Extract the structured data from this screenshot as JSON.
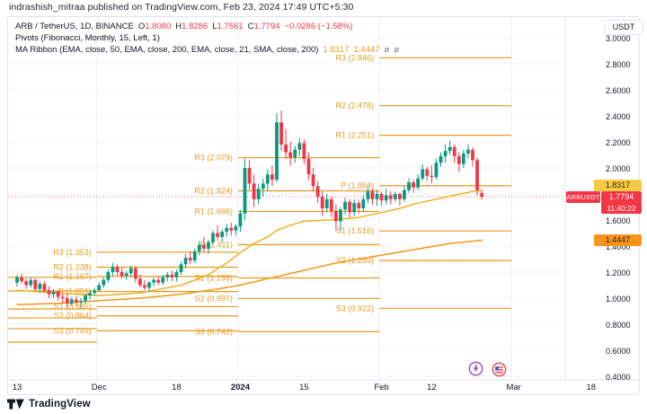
{
  "header": {
    "note": "indrashish_mitraa published on TradingView.com, Feb 23, 2024 17:49 UTC+5:30"
  },
  "legend": {
    "symbol": "ARB / TetherUS, 1D, BINANCE",
    "ohlc": [
      {
        "k": "O",
        "v": "1.8080"
      },
      {
        "k": "H",
        "v": "1.8286"
      },
      {
        "k": "L",
        "v": "1.7561"
      },
      {
        "k": "C",
        "v": "1.7794"
      }
    ],
    "change": "−0.0286 (−1.58%)",
    "pivots_line": "Pivots (Fibonacci, Monthly, 15, Left, 1)",
    "ma_line": "MA Ribbon (EMA, close, 50, EMA, close, 200, EMA, close, 21, SMA, close, 200)",
    "ma_v1": "1.8317",
    "ma_v2": "1.4447",
    "ma_v3": "ø",
    "ma_v4": "ø"
  },
  "price_axis": {
    "currency": "USDT",
    "ma_fast_label": "1.8317",
    "symbol_tag": "ARBUSDT",
    "last_price": "1.7794",
    "countdown": "11:40:22",
    "ma_slow_label": "1.4447"
  },
  "footer": {
    "brand": "TradingView"
  },
  "chart_data": {
    "type": "candlestick",
    "title": "ARB / TetherUS, 1D, BINANCE",
    "symbol": "ARBUSDT",
    "interval": "1D",
    "exchange": "BINANCE",
    "start_date": "2023-11-13",
    "end_date": "2024-02-23",
    "last_bar": {
      "o": 1.808,
      "h": 1.8286,
      "l": 1.7561,
      "c": 1.7794,
      "change": -0.0286,
      "change_pct": -1.58
    },
    "current_price": 1.7794,
    "ylim": [
      0.38,
      3.05
    ],
    "grid": true,
    "price_ticks": [
      3.0,
      2.8,
      2.6,
      2.4,
      2.2,
      2.0,
      1.8,
      1.6,
      1.4,
      1.2,
      1.0,
      0.8,
      0.6,
      0.4
    ],
    "time_ticks": [
      {
        "label": "13",
        "i": 0,
        "bold": false
      },
      {
        "label": "Dec",
        "i": 18,
        "bold": false
      },
      {
        "label": "18",
        "i": 35,
        "bold": false
      },
      {
        "label": "2024",
        "i": 49,
        "bold": true
      },
      {
        "label": "15",
        "i": 63,
        "bold": false
      },
      {
        "label": "Feb",
        "i": 80,
        "bold": false
      },
      {
        "label": "12",
        "i": 91,
        "bold": false
      },
      {
        "label": "Mar",
        "i": 109,
        "bold": false
      },
      {
        "label": "18",
        "i": 126,
        "bold": false
      }
    ],
    "month_gridline_idx": [
      18,
      49,
      80,
      109
    ],
    "colors": {
      "up": "#089981",
      "down": "#f23645",
      "pivot": "#e8991f",
      "ma_fast": "#edb021",
      "ma_slow": "#f09819",
      "grid": "#f0f3fa",
      "axis_border": "#e0e3eb",
      "last_price_line": "#f23645"
    },
    "pivots": [
      {
        "month": "Nov",
        "from_i": -2,
        "to_i": 18,
        "levels": [
          {
            "name": "",
            "value": 1.16
          },
          {
            "name": "",
            "value": 1.055
          },
          {
            "name": "",
            "value": 0.917
          },
          {
            "name": "",
            "value": 0.848
          },
          {
            "name": "",
            "value": 0.766
          },
          {
            "name": "",
            "value": 0.662
          }
        ]
      },
      {
        "month": "Dec",
        "from_i": 18,
        "to_i": 49,
        "levels": [
          {
            "name": "R3",
            "value": 1.353
          },
          {
            "name": "R2",
            "value": 1.238
          },
          {
            "name": "R1",
            "value": 1.167
          },
          {
            "name": "P",
            "value": 1.051
          },
          {
            "name": "S1",
            "value": 0.935
          },
          {
            "name": "S2",
            "value": 0.864
          },
          {
            "name": "S3",
            "value": 0.749
          }
        ]
      },
      {
        "month": "Jan",
        "from_i": 49,
        "to_i": 80,
        "levels": [
          {
            "name": "R3",
            "value": 2.079
          },
          {
            "name": "R2",
            "value": 1.824
          },
          {
            "name": "R1",
            "value": 1.666
          },
          {
            "name": "P",
            "value": 1.411
          },
          {
            "name": "S1",
            "value": 1.155
          },
          {
            "name": "S2",
            "value": 0.997
          },
          {
            "name": "S3",
            "value": 0.742
          }
        ]
      },
      {
        "month": "Feb",
        "from_i": 80,
        "to_i": 109,
        "levels": [
          {
            "name": "R3",
            "value": 2.846
          },
          {
            "name": "R2",
            "value": 2.478
          },
          {
            "name": "R1",
            "value": 2.251
          },
          {
            "name": "P",
            "value": 1.864
          },
          {
            "name": "S1",
            "value": 1.516
          },
          {
            "name": "S2",
            "value": 1.289
          },
          {
            "name": "S3",
            "value": 0.922
          }
        ]
      }
    ],
    "ma_fast": {
      "name": "EMA 50",
      "last_value": 1.8317,
      "points": [
        [
          0,
          1.06
        ],
        [
          9,
          1.04
        ],
        [
          18,
          1.02
        ],
        [
          27,
          1.04
        ],
        [
          36,
          1.1
        ],
        [
          42,
          1.18
        ],
        [
          46,
          1.27
        ],
        [
          49,
          1.35
        ],
        [
          52,
          1.42
        ],
        [
          55,
          1.47
        ],
        [
          57,
          1.52
        ],
        [
          60,
          1.56
        ],
        [
          63,
          1.59
        ],
        [
          68,
          1.6
        ],
        [
          72,
          1.61
        ],
        [
          75,
          1.62
        ],
        [
          79,
          1.65
        ],
        [
          84,
          1.69
        ],
        [
          88,
          1.73
        ],
        [
          92,
          1.76
        ],
        [
          96,
          1.79
        ],
        [
          100,
          1.82
        ],
        [
          102,
          1.8317
        ]
      ]
    },
    "ma_slow": {
      "name": "EMA 200",
      "last_value": 1.4447,
      "points": [
        [
          0,
          0.95
        ],
        [
          9,
          0.96
        ],
        [
          18,
          0.98
        ],
        [
          27,
          1.0
        ],
        [
          36,
          1.03
        ],
        [
          44,
          1.07
        ],
        [
          49,
          1.1
        ],
        [
          55,
          1.15
        ],
        [
          60,
          1.19
        ],
        [
          65,
          1.23
        ],
        [
          70,
          1.27
        ],
        [
          75,
          1.3
        ],
        [
          80,
          1.33
        ],
        [
          85,
          1.36
        ],
        [
          90,
          1.39
        ],
        [
          95,
          1.42
        ],
        [
          102,
          1.4447
        ]
      ]
    },
    "candles": [
      [
        1.12,
        1.18,
        1.09,
        1.16
      ],
      [
        1.16,
        1.19,
        1.11,
        1.13
      ],
      [
        1.13,
        1.15,
        1.07,
        1.1
      ],
      [
        1.1,
        1.16,
        1.08,
        1.14
      ],
      [
        1.14,
        1.15,
        1.05,
        1.07
      ],
      [
        1.07,
        1.13,
        1.04,
        1.11
      ],
      [
        1.11,
        1.13,
        1.04,
        1.06
      ],
      [
        1.06,
        1.09,
        1.0,
        1.03
      ],
      [
        1.03,
        1.07,
        1.0,
        1.05
      ],
      [
        1.05,
        1.06,
        0.98,
        1.01
      ],
      [
        1.01,
        1.04,
        0.96,
        1.0
      ],
      [
        1.0,
        1.03,
        0.93,
        0.96
      ],
      [
        0.96,
        1.01,
        0.94,
        0.99
      ],
      [
        0.99,
        1.02,
        0.94,
        0.97
      ],
      [
        0.97,
        1.0,
        0.92,
        0.98
      ],
      [
        0.98,
        1.03,
        0.96,
        1.02
      ],
      [
        1.02,
        1.06,
        0.99,
        1.04
      ],
      [
        1.04,
        1.08,
        1.02,
        1.06
      ],
      [
        1.06,
        1.12,
        1.05,
        1.1
      ],
      [
        1.1,
        1.16,
        1.08,
        1.14
      ],
      [
        1.14,
        1.22,
        1.12,
        1.2
      ],
      [
        1.2,
        1.27,
        1.17,
        1.24
      ],
      [
        1.24,
        1.26,
        1.17,
        1.2
      ],
      [
        1.2,
        1.23,
        1.15,
        1.17
      ],
      [
        1.17,
        1.21,
        1.14,
        1.19
      ],
      [
        1.19,
        1.25,
        1.16,
        1.23
      ],
      [
        1.23,
        1.24,
        1.12,
        1.15
      ],
      [
        1.15,
        1.18,
        1.08,
        1.1
      ],
      [
        1.1,
        1.14,
        1.06,
        1.08
      ],
      [
        1.08,
        1.13,
        1.05,
        1.12
      ],
      [
        1.12,
        1.16,
        1.09,
        1.14
      ],
      [
        1.14,
        1.17,
        1.1,
        1.12
      ],
      [
        1.12,
        1.18,
        1.1,
        1.16
      ],
      [
        1.16,
        1.2,
        1.13,
        1.18
      ],
      [
        1.18,
        1.21,
        1.13,
        1.16
      ],
      [
        1.16,
        1.22,
        1.13,
        1.2
      ],
      [
        1.2,
        1.28,
        1.18,
        1.26
      ],
      [
        1.26,
        1.34,
        1.23,
        1.31
      ],
      [
        1.31,
        1.36,
        1.26,
        1.29
      ],
      [
        1.29,
        1.38,
        1.27,
        1.36
      ],
      [
        1.36,
        1.44,
        1.33,
        1.41
      ],
      [
        1.41,
        1.47,
        1.35,
        1.38
      ],
      [
        1.38,
        1.45,
        1.34,
        1.43
      ],
      [
        1.43,
        1.52,
        1.41,
        1.5
      ],
      [
        1.5,
        1.56,
        1.44,
        1.47
      ],
      [
        1.47,
        1.53,
        1.43,
        1.51
      ],
      [
        1.51,
        1.57,
        1.47,
        1.54
      ],
      [
        1.54,
        1.58,
        1.48,
        1.52
      ],
      [
        1.52,
        1.57,
        1.48,
        1.55
      ],
      [
        1.55,
        1.68,
        1.51,
        1.65
      ],
      [
        1.65,
        2.07,
        1.6,
        2.0
      ],
      [
        2.0,
        2.06,
        1.83,
        1.88
      ],
      [
        1.88,
        1.95,
        1.7,
        1.76
      ],
      [
        1.76,
        1.88,
        1.72,
        1.84
      ],
      [
        1.84,
        1.92,
        1.78,
        1.88
      ],
      [
        1.88,
        1.99,
        1.82,
        1.95
      ],
      [
        1.95,
        2.02,
        1.86,
        1.91
      ],
      [
        1.91,
        2.42,
        1.89,
        2.35
      ],
      [
        2.35,
        2.44,
        2.13,
        2.18
      ],
      [
        2.18,
        2.3,
        2.07,
        2.12
      ],
      [
        2.12,
        2.2,
        2.02,
        2.08
      ],
      [
        2.08,
        2.17,
        2.04,
        2.14
      ],
      [
        2.14,
        2.23,
        2.09,
        2.19
      ],
      [
        2.19,
        2.22,
        2.03,
        2.07
      ],
      [
        2.07,
        2.12,
        1.91,
        1.95
      ],
      [
        1.95,
        2.0,
        1.82,
        1.86
      ],
      [
        1.86,
        1.9,
        1.73,
        1.78
      ],
      [
        1.78,
        1.82,
        1.63,
        1.69
      ],
      [
        1.69,
        1.8,
        1.66,
        1.76
      ],
      [
        1.76,
        1.78,
        1.62,
        1.67
      ],
      [
        1.67,
        1.72,
        1.52,
        1.59
      ],
      [
        1.59,
        1.7,
        1.52,
        1.68
      ],
      [
        1.68,
        1.77,
        1.64,
        1.74
      ],
      [
        1.74,
        1.76,
        1.62,
        1.66
      ],
      [
        1.66,
        1.76,
        1.63,
        1.73
      ],
      [
        1.73,
        1.75,
        1.65,
        1.69
      ],
      [
        1.69,
        1.79,
        1.66,
        1.76
      ],
      [
        1.76,
        1.85,
        1.73,
        1.82
      ],
      [
        1.82,
        1.84,
        1.72,
        1.76
      ],
      [
        1.76,
        1.83,
        1.71,
        1.8
      ],
      [
        1.8,
        1.82,
        1.71,
        1.75
      ],
      [
        1.75,
        1.84,
        1.72,
        1.79
      ],
      [
        1.79,
        1.82,
        1.72,
        1.76
      ],
      [
        1.76,
        1.82,
        1.74,
        1.8
      ],
      [
        1.8,
        1.81,
        1.71,
        1.76
      ],
      [
        1.76,
        1.86,
        1.74,
        1.83
      ],
      [
        1.83,
        1.92,
        1.81,
        1.89
      ],
      [
        1.89,
        1.91,
        1.81,
        1.85
      ],
      [
        1.85,
        1.95,
        1.83,
        1.92
      ],
      [
        1.92,
        2.03,
        1.9,
        1.99
      ],
      [
        1.99,
        2.01,
        1.9,
        1.94
      ],
      [
        1.94,
        2.02,
        1.88,
        1.93
      ],
      [
        1.93,
        2.07,
        1.91,
        2.04
      ],
      [
        2.04,
        2.12,
        2.01,
        2.09
      ],
      [
        2.09,
        2.18,
        2.04,
        2.13
      ],
      [
        2.13,
        2.21,
        2.1,
        2.16
      ],
      [
        2.16,
        2.18,
        2.04,
        2.09
      ],
      [
        2.09,
        2.12,
        1.97,
        2.03
      ],
      [
        2.03,
        2.14,
        2.0,
        2.11
      ],
      [
        2.11,
        2.18,
        2.07,
        2.14
      ],
      [
        2.14,
        2.16,
        2.01,
        2.06
      ],
      [
        2.06,
        2.08,
        1.79,
        1.83
      ],
      [
        1.808,
        1.8286,
        1.7561,
        1.7794
      ]
    ]
  }
}
